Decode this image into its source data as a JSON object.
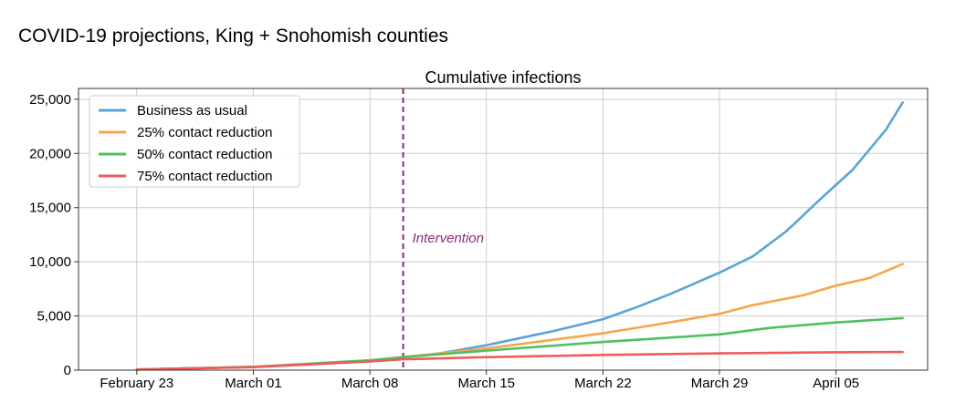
{
  "page_title": "COVID-19 projections, King + Snohomish counties",
  "chart_data": {
    "type": "line",
    "title": "Cumulative infections",
    "xlabel": "",
    "ylabel": "",
    "x_start_day": 0,
    "x_end_day": 46,
    "xlim": [
      -3.5,
      47.5
    ],
    "ylim": [
      0,
      26000
    ],
    "grid": true,
    "legend_position": "top-left",
    "x_ticks": [
      {
        "day": 0,
        "label": "February 23"
      },
      {
        "day": 7,
        "label": "March 01"
      },
      {
        "day": 14,
        "label": "March 08"
      },
      {
        "day": 21,
        "label": "March 15"
      },
      {
        "day": 28,
        "label": "March 22"
      },
      {
        "day": 35,
        "label": "March 29"
      },
      {
        "day": 42,
        "label": "April 05"
      }
    ],
    "y_ticks": [
      {
        "value": 0,
        "label": "0"
      },
      {
        "value": 5000,
        "label": "5,000"
      },
      {
        "value": 10000,
        "label": "10,000"
      },
      {
        "value": 15000,
        "label": "15,000"
      },
      {
        "value": 20000,
        "label": "20,000"
      },
      {
        "value": 25000,
        "label": "25,000"
      }
    ],
    "intervention": {
      "day": 16,
      "label": "Intervention",
      "color": "#8b2a7a",
      "label_value": 12200
    },
    "colors": {
      "grid": "#cccccc",
      "axis": "#333333",
      "legend_border": "#cccccc"
    },
    "series": [
      {
        "name": "Business as usual",
        "color": "#5aa5d6",
        "key_points": [
          [
            0,
            60
          ],
          [
            7,
            300
          ],
          [
            14,
            900
          ],
          [
            16,
            1200
          ],
          [
            18,
            1500
          ],
          [
            21,
            2300
          ],
          [
            25,
            3600
          ],
          [
            28,
            4700
          ],
          [
            30,
            5800
          ],
          [
            32,
            7000
          ],
          [
            35,
            9000
          ],
          [
            37,
            10500
          ],
          [
            39,
            12800
          ],
          [
            41,
            15700
          ],
          [
            43,
            18500
          ],
          [
            45,
            22200
          ],
          [
            46,
            24700
          ]
        ]
      },
      {
        "name": "25% contact reduction",
        "color": "#f7a54b",
        "key_points": [
          [
            0,
            60
          ],
          [
            7,
            300
          ],
          [
            14,
            900
          ],
          [
            16,
            1200
          ],
          [
            21,
            2000
          ],
          [
            28,
            3400
          ],
          [
            32,
            4400
          ],
          [
            35,
            5200
          ],
          [
            37,
            6000
          ],
          [
            40,
            6900
          ],
          [
            42,
            7800
          ],
          [
            44,
            8500
          ],
          [
            46,
            9800
          ]
        ]
      },
      {
        "name": "50% contact reduction",
        "color": "#4ec05f",
        "key_points": [
          [
            0,
            60
          ],
          [
            7,
            300
          ],
          [
            14,
            900
          ],
          [
            16,
            1200
          ],
          [
            21,
            1800
          ],
          [
            28,
            2600
          ],
          [
            35,
            3300
          ],
          [
            38,
            3900
          ],
          [
            42,
            4400
          ],
          [
            46,
            4800
          ]
        ]
      },
      {
        "name": "75% contact reduction",
        "color": "#f15a5a",
        "key_points": [
          [
            0,
            60
          ],
          [
            7,
            280
          ],
          [
            14,
            800
          ],
          [
            16,
            1000
          ],
          [
            21,
            1200
          ],
          [
            28,
            1400
          ],
          [
            35,
            1550
          ],
          [
            42,
            1650
          ],
          [
            46,
            1680
          ]
        ]
      }
    ]
  }
}
